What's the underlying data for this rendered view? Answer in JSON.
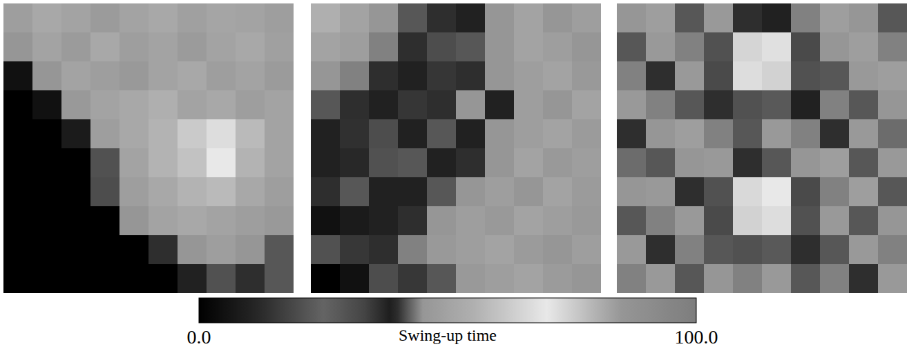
{
  "chart_data": [
    {
      "type": "heatmap",
      "tick_labels": false,
      "cells": [
        [
          48,
          52,
          50,
          47,
          50,
          52,
          49,
          51,
          50,
          48
        ],
        [
          45,
          50,
          47,
          52,
          48,
          50,
          47,
          50,
          52,
          49
        ],
        [
          5,
          45,
          50,
          48,
          46,
          50,
          52,
          48,
          50,
          47
        ],
        [
          0,
          5,
          46,
          50,
          52,
          55,
          50,
          52,
          48,
          50
        ],
        [
          0,
          0,
          8,
          48,
          52,
          56,
          62,
          72,
          58,
          50
        ],
        [
          0,
          0,
          0,
          30,
          50,
          56,
          60,
          70,
          56,
          50
        ],
        [
          0,
          0,
          0,
          20,
          48,
          52,
          56,
          58,
          52,
          48
        ],
        [
          0,
          0,
          0,
          0,
          45,
          50,
          52,
          50,
          48,
          46
        ],
        [
          0,
          0,
          0,
          0,
          0,
          40,
          45,
          48,
          45,
          42
        ],
        [
          0,
          0,
          0,
          0,
          0,
          0,
          10,
          30,
          40,
          42
        ]
      ]
    },
    {
      "type": "heatmap",
      "tick_labels": false,
      "cells": [
        [
          55,
          50,
          45,
          42,
          40,
          38,
          45,
          50,
          45,
          48
        ],
        [
          50,
          48,
          44,
          40,
          20,
          42,
          45,
          50,
          48,
          45
        ],
        [
          45,
          44,
          40,
          38,
          15,
          40,
          45,
          48,
          50,
          46
        ],
        [
          42,
          40,
          38,
          15,
          40,
          45,
          10,
          48,
          45,
          50
        ],
        [
          38,
          36,
          20,
          38,
          42,
          10,
          45,
          48,
          50,
          47
        ],
        [
          10,
          12,
          30,
          42,
          10,
          40,
          45,
          50,
          46,
          48
        ],
        [
          40,
          42,
          38,
          10,
          42,
          45,
          48,
          45,
          50,
          47
        ],
        [
          5,
          8,
          10,
          40,
          45,
          48,
          46,
          50,
          48,
          46
        ],
        [
          30,
          35,
          40,
          44,
          46,
          48,
          50,
          47,
          45,
          48
        ],
        [
          0,
          5,
          20,
          35,
          42,
          46,
          48,
          50,
          47,
          45
        ]
      ]
    },
    {
      "type": "heatmap",
      "tick_labels": false,
      "cells": [
        [
          45,
          48,
          42,
          46,
          40,
          38,
          44,
          48,
          45,
          42
        ],
        [
          42,
          46,
          44,
          30,
          65,
          68,
          32,
          45,
          48,
          44
        ],
        [
          44,
          40,
          46,
          32,
          72,
          74,
          30,
          42,
          46,
          48
        ],
        [
          46,
          44,
          42,
          40,
          30,
          28,
          38,
          44,
          42,
          45
        ],
        [
          40,
          45,
          48,
          44,
          42,
          46,
          44,
          40,
          46,
          43
        ],
        [
          43,
          42,
          45,
          46,
          40,
          42,
          45,
          48,
          42,
          46
        ],
        [
          45,
          46,
          40,
          30,
          66,
          70,
          32,
          44,
          48,
          42
        ],
        [
          42,
          44,
          46,
          32,
          74,
          72,
          30,
          46,
          42,
          45
        ],
        [
          46,
          40,
          44,
          42,
          30,
          28,
          40,
          42,
          46,
          44
        ],
        [
          44,
          46,
          42,
          45,
          44,
          46,
          42,
          44,
          40,
          46
        ]
      ]
    }
  ],
  "colorbar": {
    "label": "Swing-up time",
    "range": [
      0,
      100
    ],
    "ticks": [
      {
        "value": 0,
        "label": "0.0"
      },
      {
        "value": 100,
        "label": "100.0"
      }
    ]
  }
}
